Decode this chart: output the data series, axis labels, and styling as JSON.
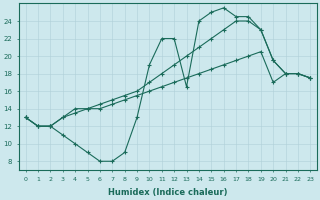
{
  "xlabel": "Humidex (Indice chaleur)",
  "ylabel": "",
  "xlim": [
    -0.5,
    23.5
  ],
  "ylim": [
    7,
    26
  ],
  "yticks": [
    8,
    10,
    12,
    14,
    16,
    18,
    20,
    22,
    24
  ],
  "xticks": [
    0,
    1,
    2,
    3,
    4,
    5,
    6,
    7,
    8,
    9,
    10,
    11,
    12,
    13,
    14,
    15,
    16,
    17,
    18,
    19,
    20,
    21,
    22,
    23
  ],
  "bg_color": "#cde8ed",
  "line_color": "#1a6b5a",
  "grid_color": "#b0d0d8",
  "lines": [
    {
      "x": [
        0,
        1,
        2,
        3,
        4,
        5,
        6,
        7,
        8,
        9,
        10,
        11,
        12,
        13,
        14,
        15,
        16,
        17,
        18,
        19,
        20,
        21,
        22,
        23
      ],
      "y": [
        13,
        12,
        12,
        11,
        10,
        9,
        8,
        8,
        9,
        13,
        19,
        22,
        22,
        16.5,
        24,
        25,
        25.5,
        24.5,
        24.5,
        23,
        19.5,
        18,
        18,
        17.5
      ]
    },
    {
      "x": [
        0,
        1,
        2,
        3,
        4,
        5,
        6,
        7,
        8,
        9,
        10,
        11,
        12,
        13,
        14,
        15,
        16,
        17,
        18,
        19,
        20,
        21,
        22,
        23
      ],
      "y": [
        13,
        12,
        12,
        13,
        14,
        14,
        14.5,
        15,
        15.5,
        16,
        17,
        18,
        19,
        20,
        21,
        22,
        23,
        24,
        24,
        23,
        19.5,
        18,
        18,
        17.5
      ]
    },
    {
      "x": [
        0,
        1,
        2,
        3,
        4,
        5,
        6,
        7,
        8,
        9,
        10,
        11,
        12,
        13,
        14,
        15,
        16,
        17,
        18,
        19,
        20,
        21,
        22,
        23
      ],
      "y": [
        13,
        12,
        12,
        13,
        13.5,
        14,
        14,
        14.5,
        15,
        15.5,
        16,
        16.5,
        17,
        17.5,
        18,
        18.5,
        19,
        19.5,
        20,
        20.5,
        17,
        18,
        18,
        17.5
      ]
    }
  ]
}
